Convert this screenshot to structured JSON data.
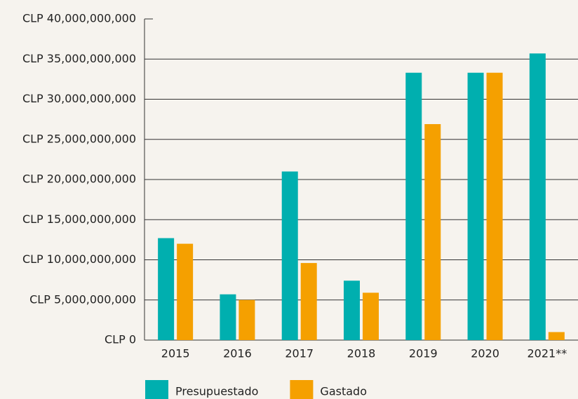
{
  "chart_data": {
    "type": "bar",
    "categories": [
      "2015",
      "2016",
      "2017",
      "2018",
      "2019",
      "2020",
      "2021**"
    ],
    "series": [
      {
        "name": "Presupuestado",
        "color": "#00afaf",
        "values": [
          12700000000,
          5700000000,
          21000000000,
          7400000000,
          33300000000,
          33300000000,
          35700000000
        ]
      },
      {
        "name": "Gastado",
        "color": "#f5a000",
        "values": [
          12000000000,
          5000000000,
          9600000000,
          5900000000,
          26900000000,
          33300000000,
          1000000000
        ]
      }
    ],
    "ylim": [
      0,
      40000000000
    ],
    "yticks": [
      {
        "value": 0,
        "label": "CLP 0"
      },
      {
        "value": 5000000000,
        "label": "CLP 5,000,000,000"
      },
      {
        "value": 10000000000,
        "label": "CLP 10,000,000,000"
      },
      {
        "value": 15000000000,
        "label": "CLP 15,000,000,000"
      },
      {
        "value": 20000000000,
        "label": "CLP 20,000,000,000"
      },
      {
        "value": 25000000000,
        "label": "CLP 25,000,000,000"
      },
      {
        "value": 30000000000,
        "label": "CLP 30,000,000,000"
      },
      {
        "value": 35000000000,
        "label": "CLP 35,000,000,000"
      },
      {
        "value": 40000000000,
        "label": "CLP 40,000,000,000"
      }
    ],
    "grid": true,
    "legend": "bottom"
  }
}
